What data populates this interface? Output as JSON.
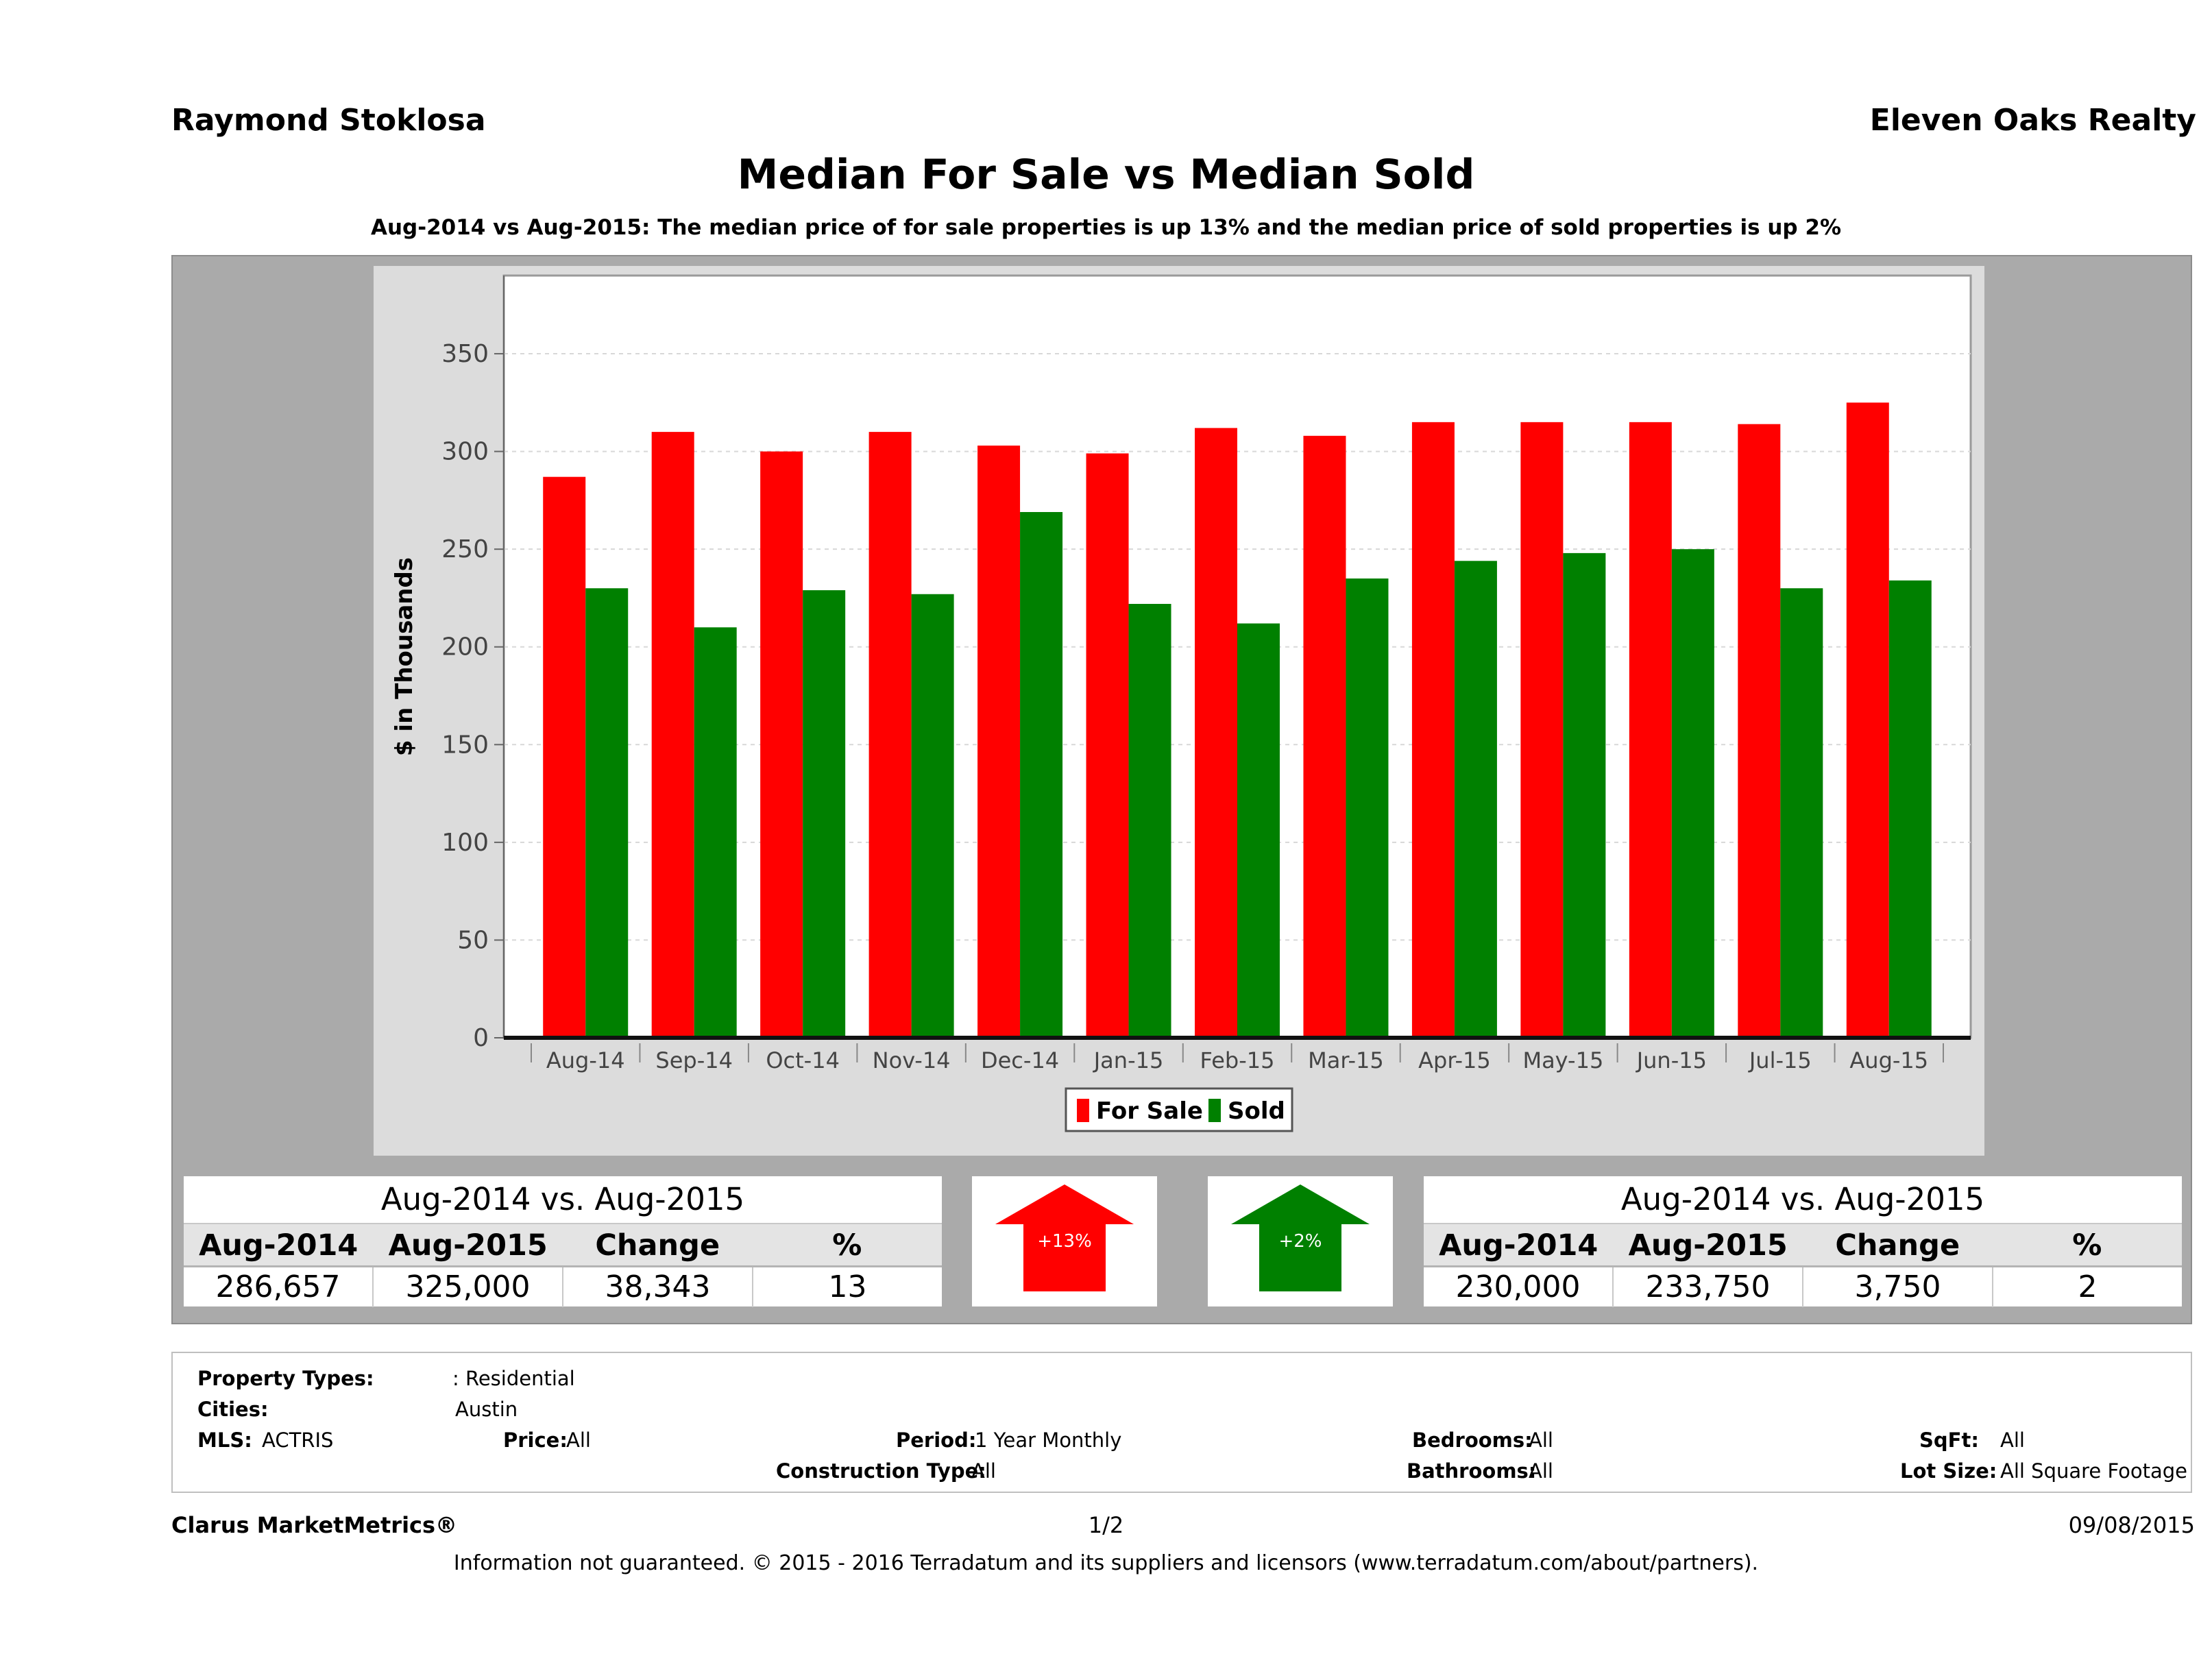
{
  "header": {
    "agent_name": "Raymond Stoklosa",
    "company": "Eleven Oaks Realty"
  },
  "title": "Median For Sale vs Median Sold",
  "subtitle": "Aug-2014 vs Aug-2015: The median price of for sale properties is up 13% and the median price of sold properties is up 2%",
  "colors": {
    "for_sale": "#ff0000",
    "sold": "#008000",
    "panel": "#aaaaaa",
    "plot_bg": "#ffffff"
  },
  "chart_data": {
    "type": "bar",
    "categories": [
      "Aug-14",
      "Sep-14",
      "Oct-14",
      "Nov-14",
      "Dec-14",
      "Jan-15",
      "Feb-15",
      "Mar-15",
      "Apr-15",
      "May-15",
      "Jun-15",
      "Jul-15",
      "Aug-15"
    ],
    "series": [
      {
        "name": "For Sale",
        "color": "#ff0000",
        "values": [
          287,
          310,
          300,
          310,
          303,
          299,
          312,
          308,
          315,
          315,
          315,
          314,
          325
        ]
      },
      {
        "name": "Sold",
        "color": "#008000",
        "values": [
          230,
          210,
          229,
          227,
          269,
          222,
          212,
          235,
          244,
          248,
          250,
          230,
          234
        ]
      }
    ],
    "ylabel": "$ in Thousands",
    "xlabel": "",
    "ylim": [
      0,
      390
    ],
    "yticks": [
      0,
      50,
      100,
      150,
      200,
      250,
      300,
      350
    ],
    "grid": true,
    "legend": "bottom-center"
  },
  "for_sale_table": {
    "heading": "Aug-2014 vs. Aug-2015",
    "columns": [
      "Aug-2014",
      "Aug-2015",
      "Change",
      "%"
    ],
    "values": [
      "286,657",
      "325,000",
      "38,343",
      "13"
    ]
  },
  "sold_table": {
    "heading": "Aug-2014 vs. Aug-2015",
    "columns": [
      "Aug-2014",
      "Aug-2015",
      "Change",
      "%"
    ],
    "values": [
      "230,000",
      "233,750",
      "3,750",
      "2"
    ]
  },
  "arrows": {
    "for_sale_label": "+13%",
    "sold_label": "+2%"
  },
  "filters": {
    "property_types_label": "Property Types:",
    "property_types_value": ": Residential",
    "cities_label": "Cities:",
    "cities_value": "Austin",
    "mls_label": "MLS:",
    "mls_value": "ACTRIS",
    "price_label": "Price:",
    "price_value": "All",
    "period_label": "Period:",
    "period_value": "1 Year Monthly",
    "construction_label": "Construction Type:",
    "construction_value": "All",
    "bedrooms_label": "Bedrooms:",
    "bedrooms_value": "All",
    "bathrooms_label": "Bathrooms:",
    "bathrooms_value": "All",
    "sqft_label": "SqFt:",
    "sqft_value": "All",
    "lotsize_label": "Lot Size:",
    "lotsize_value": "All Square Footage"
  },
  "footer": {
    "brand": "Clarus MarketMetrics®",
    "page": "1/2",
    "date": "09/08/2015",
    "note": "Information not guaranteed. © 2015 - 2016 Terradatum and its suppliers and licensors (www.terradatum.com/about/partners)."
  }
}
